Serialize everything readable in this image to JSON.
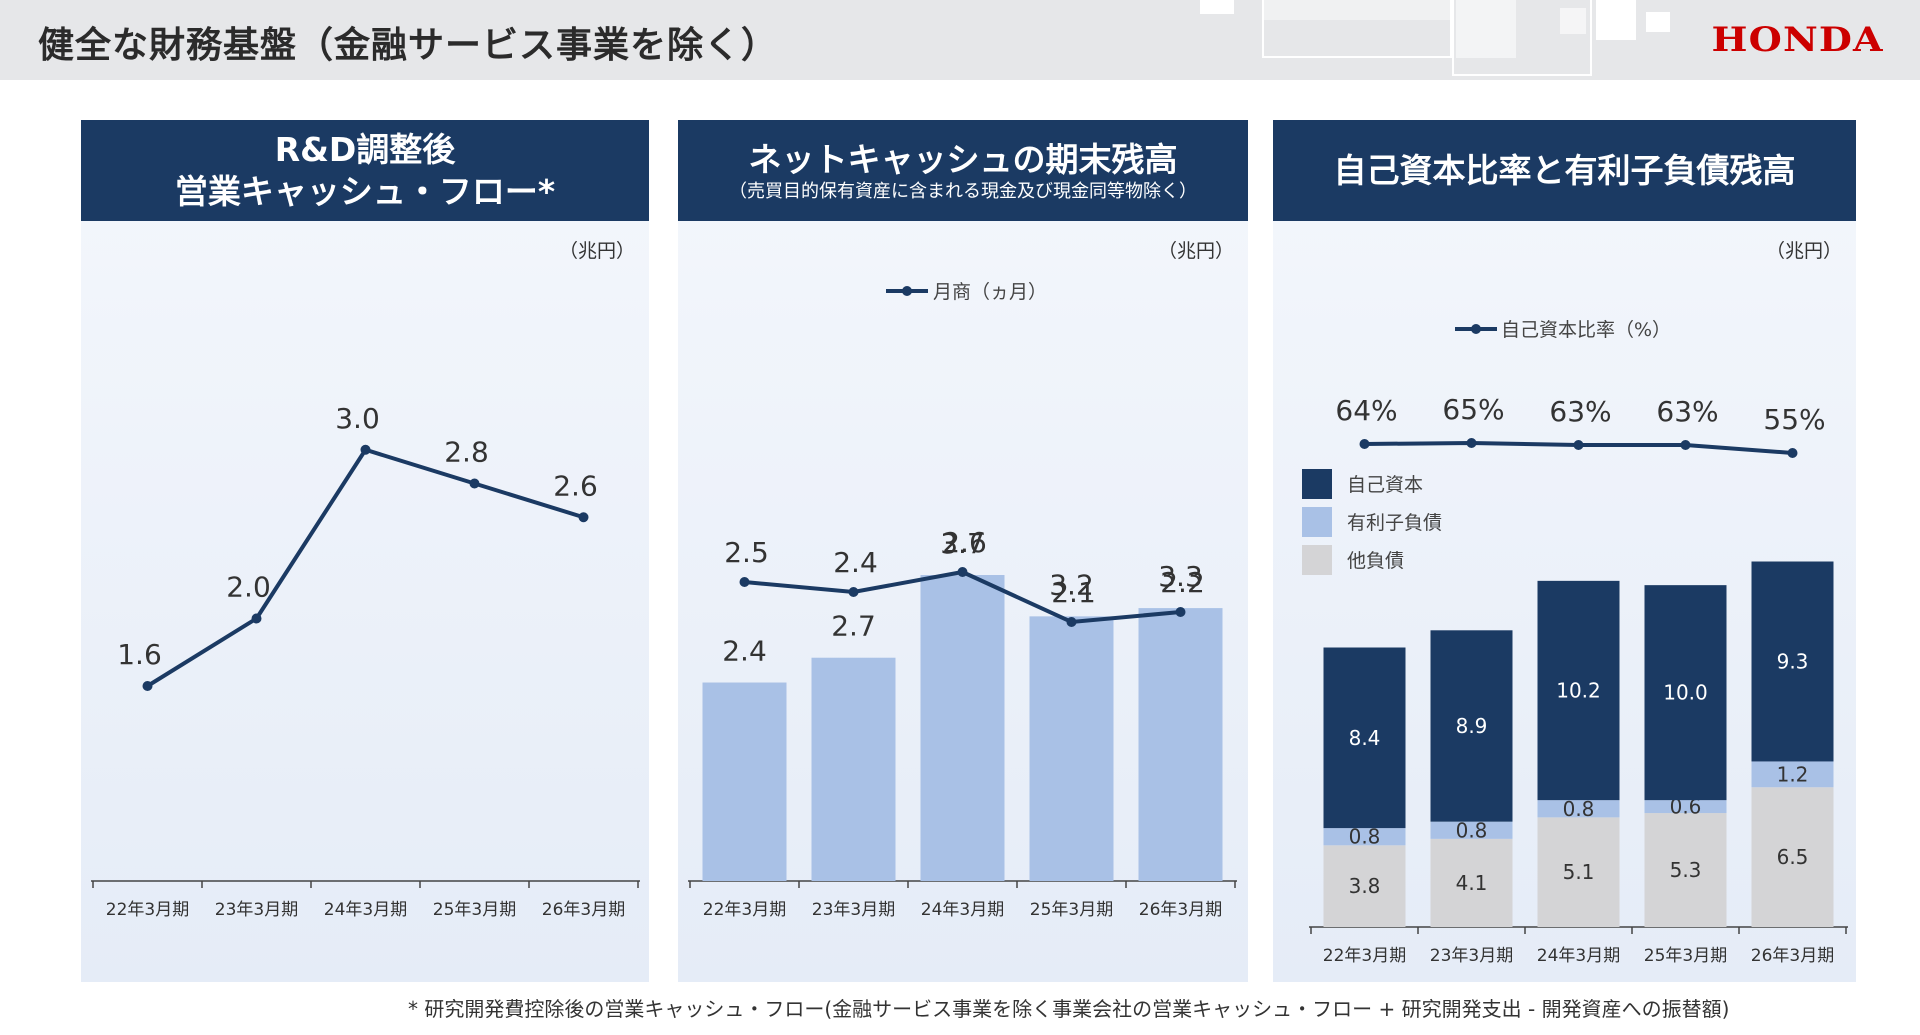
{
  "header": {
    "title": "健全な財務基盤（金融サービス事業を除く）",
    "logo_text": "HONDA"
  },
  "colors": {
    "navy": "#1b3a63",
    "light_blue": "#a9c1e6",
    "gray": "#d4d4d6",
    "logo_red": "#cc0000"
  },
  "panels": [
    {
      "title": "R&D調整後\n営業キャッシュ・フロー*",
      "subtitle": "",
      "unit": "（兆円）"
    },
    {
      "title": "ネットキャッシュの期末残高",
      "subtitle": "（売買目的保有資産に含まれる現金及び現金同等物除く）",
      "unit": "（兆円）"
    },
    {
      "title": "自己資本比率と有利子負債残高",
      "subtitle": "",
      "unit": "（兆円）"
    }
  ],
  "chart_data": [
    {
      "type": "line",
      "categories": [
        "22年3月期",
        "23年3月期",
        "24年3月期",
        "25年3月期",
        "26年3月期"
      ],
      "series": [
        {
          "values": [
            1.6,
            2.0,
            3.0,
            2.8,
            2.6
          ],
          "labels": [
            "1.6",
            "2.0",
            "3.0",
            "2.8",
            "2.6"
          ]
        }
      ],
      "grid": false
    },
    {
      "type": "bar",
      "categories": [
        "22年3月期",
        "23年3月期",
        "24年3月期",
        "25年3月期",
        "26年3月期"
      ],
      "series": [
        {
          "values": [
            2.4,
            2.7,
            3.7,
            3.2,
            3.3
          ],
          "labels": [
            "2.4",
            "2.7",
            "3.7",
            "3.2",
            "3.3"
          ]
        },
        {
          "name": "月商（ヵ月）",
          "type": "line",
          "values": [
            2.5,
            2.4,
            2.6,
            2.1,
            2.2
          ],
          "labels": [
            "2.5",
            "2.4",
            "2.6",
            "2.1",
            "2.2"
          ]
        }
      ],
      "legend": "top-center",
      "grid": false
    },
    {
      "type": "bar",
      "stacked": true,
      "categories": [
        "22年3月期",
        "23年3月期",
        "24年3月期",
        "25年3月期",
        "26年3月期"
      ],
      "series": [
        {
          "name": "他負債",
          "values": [
            3.8,
            4.1,
            5.1,
            5.3,
            6.5
          ],
          "labels": [
            "3.8",
            "4.1",
            "5.1",
            "5.3",
            "6.5"
          ]
        },
        {
          "name": "有利子負債",
          "values": [
            0.8,
            0.8,
            0.8,
            0.6,
            1.2
          ],
          "labels": [
            "0.8",
            "0.8",
            "0.8",
            "0.6",
            "1.2"
          ]
        },
        {
          "name": "自己資本",
          "values": [
            8.4,
            8.9,
            10.2,
            10.0,
            9.3
          ],
          "labels": [
            "8.4",
            "8.9",
            "10.2",
            "10.0",
            "9.3"
          ]
        }
      ],
      "ratio_series": {
        "name": "自己資本比率（%）",
        "type": "line",
        "values": [
          64,
          65,
          63,
          63,
          55
        ],
        "labels": [
          "64%",
          "65%",
          "63%",
          "63%",
          "55%"
        ]
      },
      "legend": "top-left",
      "grid": false
    }
  ],
  "footnote": "* 研究開発費控除後の営業キャッシュ・フロー(金融サービス事業を除く事業会社の営業キャッシュ・フロー + 研究開発支出 - 開発資産への振替額)"
}
